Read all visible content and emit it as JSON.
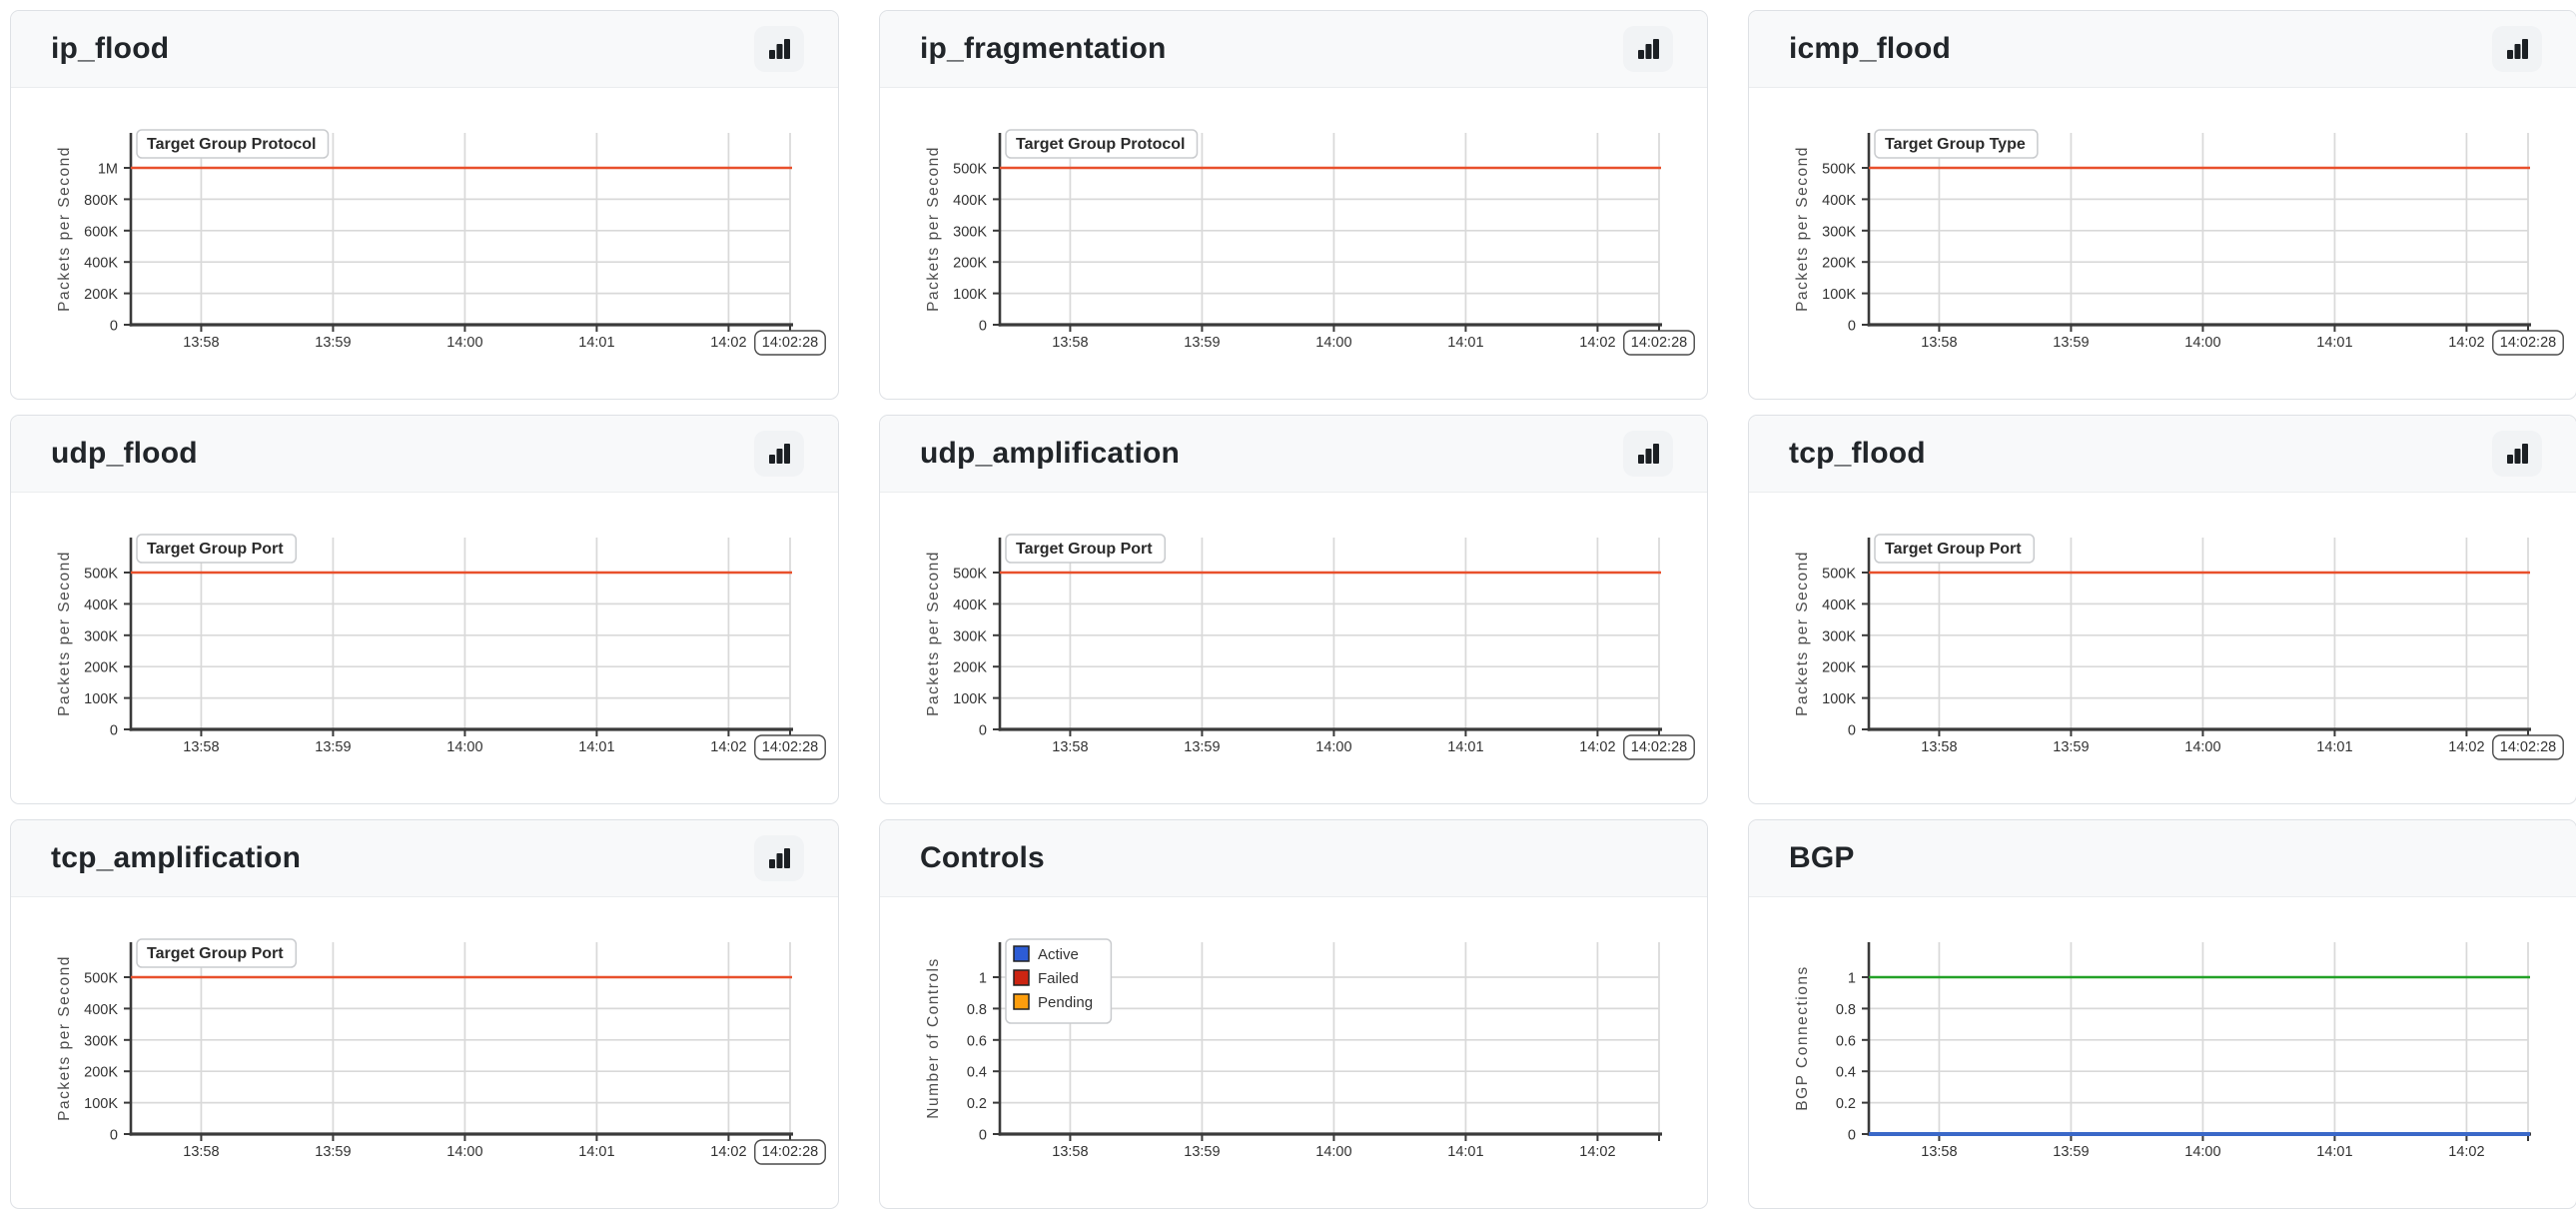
{
  "page": {
    "background": "#ffffff"
  },
  "colors": {
    "panel_border": "#dee1e5",
    "header_bg": "#f8f9fa",
    "title_color": "#212529",
    "grid_line": "#d9d9d9",
    "axis_spine": "#3a3a3a",
    "tick_text": "#333333",
    "axis_label_text": "#4d4d4d",
    "threshold_red": "#e8502c",
    "bgp_up_green": "#23a127",
    "bgp_down_blue": "#3a68c8",
    "legend_active_blue": "#2d5cd5",
    "legend_failed_red": "#cc2512",
    "legend_pending_orange": "#fd9e0d"
  },
  "chart_data": [
    {
      "title": "ip_flood",
      "header_icon": "bar-chart-icon",
      "type": "line",
      "legend_title": "Target Group Protocol",
      "ylabel": "Packets per Second",
      "ytick_values": [
        0,
        200000,
        400000,
        600000,
        800000,
        1000000
      ],
      "ytick_labels": [
        "0",
        "200K",
        "400K",
        "600K",
        "800K",
        "1M"
      ],
      "ymax_tick": 1000000,
      "xtick_labels": [
        "13:58",
        "13:59",
        "14:00",
        "14:01",
        "14:02"
      ],
      "x_end_label": "14:02:28",
      "series": [
        {
          "color": "#e8502c",
          "value": 1000000,
          "width": 2.4
        }
      ]
    },
    {
      "title": "ip_fragmentation",
      "header_icon": "bar-chart-icon",
      "type": "line",
      "legend_title": "Target Group Protocol",
      "ylabel": "Packets per Second",
      "ytick_values": [
        0,
        100000,
        200000,
        300000,
        400000,
        500000
      ],
      "ytick_labels": [
        "0",
        "100K",
        "200K",
        "300K",
        "400K",
        "500K"
      ],
      "ymax_tick": 500000,
      "xtick_labels": [
        "13:58",
        "13:59",
        "14:00",
        "14:01",
        "14:02"
      ],
      "x_end_label": "14:02:28",
      "series": [
        {
          "color": "#e8502c",
          "value": 500000,
          "width": 2.4
        }
      ]
    },
    {
      "title": "icmp_flood",
      "header_icon": "bar-chart-icon",
      "type": "line",
      "legend_title": "Target Group Type",
      "ylabel": "Packets per Second",
      "ytick_values": [
        0,
        100000,
        200000,
        300000,
        400000,
        500000
      ],
      "ytick_labels": [
        "0",
        "100K",
        "200K",
        "300K",
        "400K",
        "500K"
      ],
      "ymax_tick": 500000,
      "xtick_labels": [
        "13:58",
        "13:59",
        "14:00",
        "14:01",
        "14:02"
      ],
      "x_end_label": "14:02:28",
      "series": [
        {
          "color": "#e8502c",
          "value": 500000,
          "width": 2.4
        }
      ]
    },
    {
      "title": "udp_flood",
      "header_icon": "bar-chart-icon",
      "type": "line",
      "legend_title": "Target Group Port",
      "ylabel": "Packets per Second",
      "ytick_values": [
        0,
        100000,
        200000,
        300000,
        400000,
        500000
      ],
      "ytick_labels": [
        "0",
        "100K",
        "200K",
        "300K",
        "400K",
        "500K"
      ],
      "ymax_tick": 500000,
      "xtick_labels": [
        "13:58",
        "13:59",
        "14:00",
        "14:01",
        "14:02"
      ],
      "x_end_label": "14:02:28",
      "series": [
        {
          "color": "#e8502c",
          "value": 500000,
          "width": 2.4
        }
      ]
    },
    {
      "title": "udp_amplification",
      "header_icon": "bar-chart-icon",
      "type": "line",
      "legend_title": "Target Group Port",
      "ylabel": "Packets per Second",
      "ytick_values": [
        0,
        100000,
        200000,
        300000,
        400000,
        500000
      ],
      "ytick_labels": [
        "0",
        "100K",
        "200K",
        "300K",
        "400K",
        "500K"
      ],
      "ymax_tick": 500000,
      "xtick_labels": [
        "13:58",
        "13:59",
        "14:00",
        "14:01",
        "14:02"
      ],
      "x_end_label": "14:02:28",
      "series": [
        {
          "color": "#e8502c",
          "value": 500000,
          "width": 2.4
        }
      ]
    },
    {
      "title": "tcp_flood",
      "header_icon": "bar-chart-icon",
      "type": "line",
      "legend_title": "Target Group Port",
      "ylabel": "Packets per Second",
      "ytick_values": [
        0,
        100000,
        200000,
        300000,
        400000,
        500000
      ],
      "ytick_labels": [
        "0",
        "100K",
        "200K",
        "300K",
        "400K",
        "500K"
      ],
      "ymax_tick": 500000,
      "xtick_labels": [
        "13:58",
        "13:59",
        "14:00",
        "14:01",
        "14:02"
      ],
      "x_end_label": "14:02:28",
      "series": [
        {
          "color": "#e8502c",
          "value": 500000,
          "width": 2.4
        }
      ]
    },
    {
      "title": "tcp_amplification",
      "header_icon": "bar-chart-icon",
      "type": "line",
      "legend_title": "Target Group Port",
      "ylabel": "Packets per Second",
      "ytick_values": [
        0,
        100000,
        200000,
        300000,
        400000,
        500000
      ],
      "ytick_labels": [
        "0",
        "100K",
        "200K",
        "300K",
        "400K",
        "500K"
      ],
      "ymax_tick": 500000,
      "xtick_labels": [
        "13:58",
        "13:59",
        "14:00",
        "14:01",
        "14:02"
      ],
      "x_end_label": "14:02:28",
      "series": [
        {
          "color": "#e8502c",
          "value": 500000,
          "width": 2.4
        }
      ]
    },
    {
      "title": "Controls",
      "header_icon": null,
      "type": "line",
      "legend_items": [
        {
          "label": "Active",
          "color": "#2d5cd5"
        },
        {
          "label": "Failed",
          "color": "#cc2512"
        },
        {
          "label": "Pending",
          "color": "#fd9e0d"
        }
      ],
      "ylabel": "Number of Controls",
      "ytick_values": [
        0,
        0.2,
        0.4,
        0.6,
        0.8,
        1
      ],
      "ytick_labels": [
        "0",
        "0.2",
        "0.4",
        "0.6",
        "0.8",
        "1"
      ],
      "ymax_tick": 1,
      "xtick_labels": [
        "13:58",
        "13:59",
        "14:00",
        "14:01",
        "14:02"
      ],
      "x_end_label": null,
      "series": []
    },
    {
      "title": "BGP",
      "header_icon": null,
      "type": "line",
      "ylabel": "BGP Connections",
      "ytick_values": [
        0,
        0.2,
        0.4,
        0.6,
        0.8,
        1
      ],
      "ytick_labels": [
        "0",
        "0.2",
        "0.4",
        "0.6",
        "0.8",
        "1"
      ],
      "ymax_tick": 1,
      "xtick_labels": [
        "13:58",
        "13:59",
        "14:00",
        "14:01",
        "14:02"
      ],
      "x_end_label": null,
      "series": [
        {
          "color": "#23a127",
          "value": 1,
          "width": 2.4
        },
        {
          "color": "#3a68c8",
          "value": 0,
          "width": 4
        }
      ]
    }
  ]
}
